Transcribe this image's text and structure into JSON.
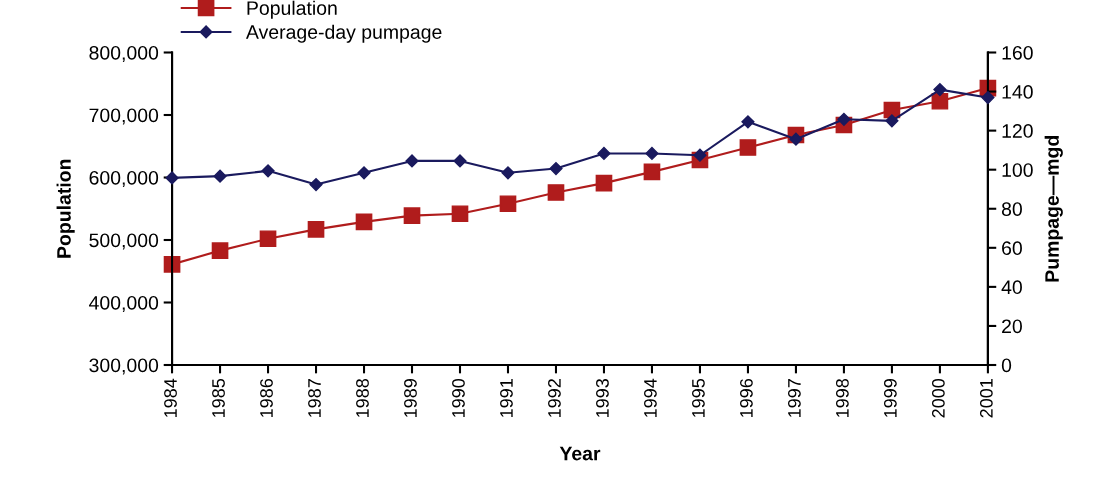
{
  "chart_data": {
    "type": "line",
    "xlabel": "Year",
    "ylabel": "Population",
    "y2label": "Pumpage—mgd",
    "categories": [
      "1984",
      "1985",
      "1986",
      "1987",
      "1988",
      "1989",
      "1990",
      "1991",
      "1992",
      "1993",
      "1994",
      "1995",
      "1996",
      "1997",
      "1998",
      "1999",
      "2000",
      "2001"
    ],
    "series": [
      {
        "name": "Population",
        "color": "#b01c1c",
        "marker": "square",
        "values": [
          461000,
          483000,
          502000,
          517000,
          529000,
          539000,
          542000,
          558000,
          576000,
          591000,
          609000,
          628000,
          648000,
          668000,
          684000,
          708000,
          722000,
          743000
        ]
      },
      {
        "name": "Average-day pumpage",
        "color": "#1a1a5e",
        "marker": "diamond",
        "axis": "y2",
        "values": [
          95.8,
          96.7,
          99.4,
          92.4,
          98.4,
          104.5,
          104.5,
          98.4,
          100.6,
          108.3,
          108.3,
          107.4,
          124.5,
          115.6,
          125.8,
          125.0,
          141.0,
          136.9
        ]
      }
    ],
    "ylim": [
      300000,
      800000
    ],
    "yticks": [
      {
        "value": 300000,
        "label": "300,000"
      },
      {
        "value": 400000,
        "label": "400,000"
      },
      {
        "value": 500000,
        "label": "500,000"
      },
      {
        "value": 600000,
        "label": "600,000"
      },
      {
        "value": 700000,
        "label": "700,000"
      },
      {
        "value": 800000,
        "label": "800,000"
      }
    ],
    "y2lim": [
      0,
      160
    ],
    "y2ticks": [
      0,
      20,
      40,
      60,
      80,
      100,
      120,
      140,
      160
    ],
    "legend": "top left",
    "grid": false
  }
}
